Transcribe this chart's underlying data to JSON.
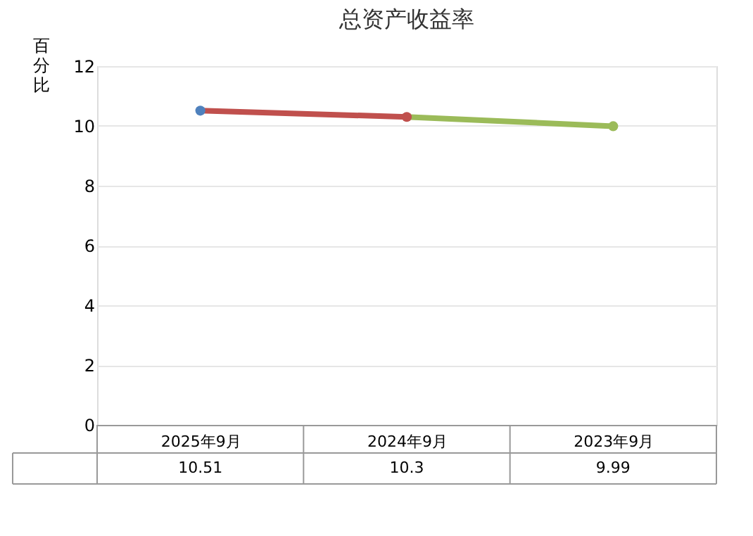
{
  "chart_data": {
    "type": "line",
    "title": "总资产收益率",
    "ylabel": "百分比",
    "categories": [
      "2025年9月",
      "2024年9月",
      "2023年9月"
    ],
    "series": [
      {
        "color": "#c0504d",
        "colors": [
          "#4f81bd",
          "#c0504d",
          "#9bbb59"
        ],
        "values": [
          10.51,
          10.3,
          9.99
        ]
      }
    ],
    "ylim": [
      0,
      12
    ],
    "yticks": [
      0,
      2,
      4,
      6,
      8,
      10,
      12
    ],
    "grid": "y",
    "marker": "circle",
    "data_labels": true
  }
}
